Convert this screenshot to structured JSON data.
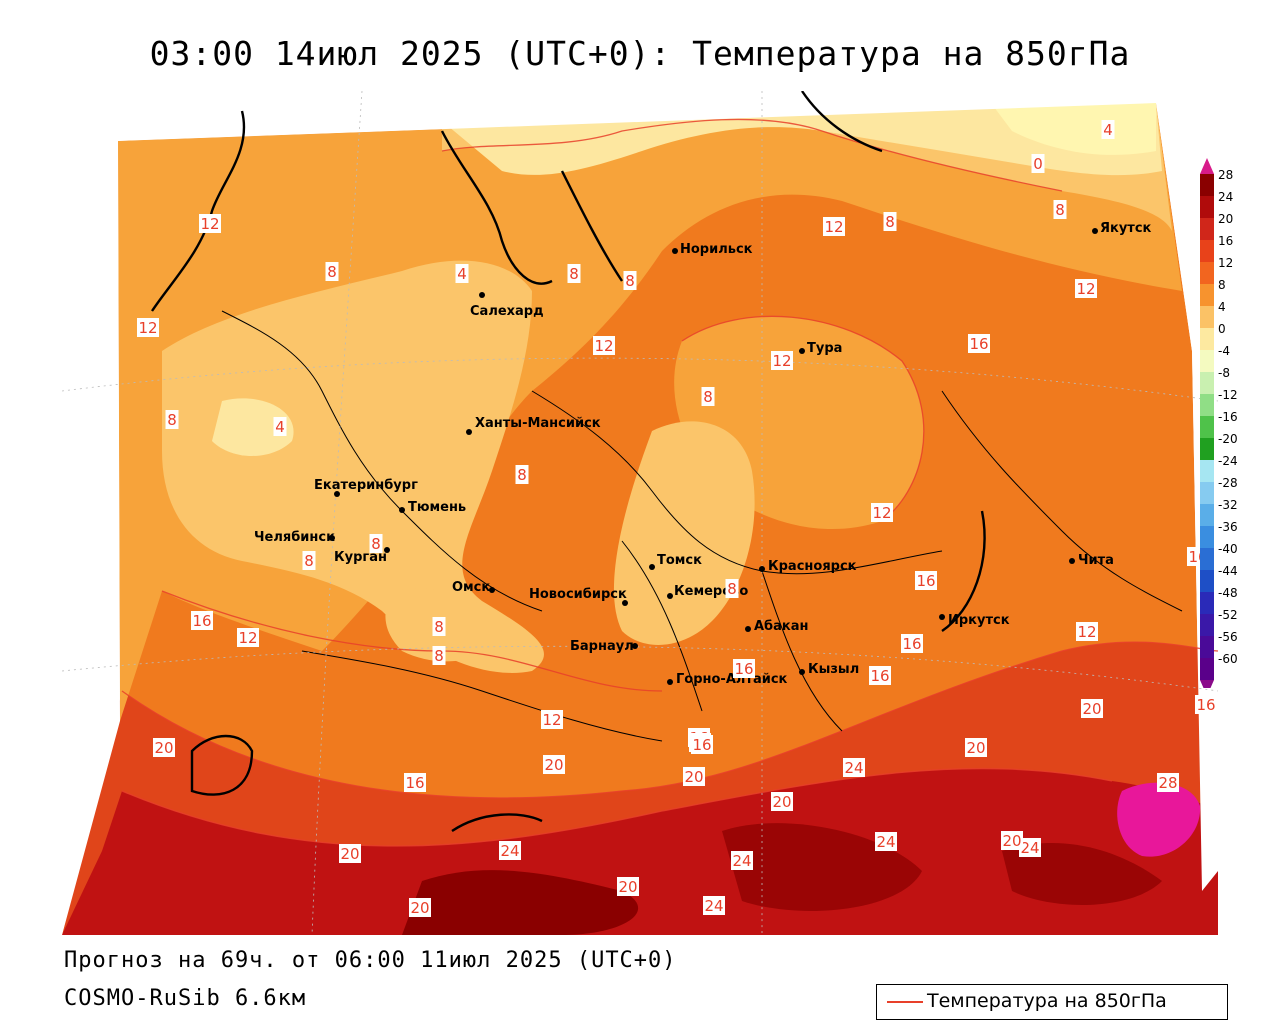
{
  "title": "03:00 14июл 2025 (UTC+0): Температура на 850гПа",
  "forecast_line": "Прогноз на 69ч. от 06:00 11июл 2025 (UTC+0)",
  "model_line": "COSMO-RuSib 6.6км",
  "legend_label": "Температура на 850гПа",
  "colors": {
    "c0": "#fff6b0",
    "c4": "#fde7a0",
    "c8": "#fbc56a",
    "c12": "#f7a33a",
    "c16": "#f07a1e",
    "c20": "#e0451a",
    "c24": "#c01212",
    "c28": "#8a0000",
    "hot": "#e8179a"
  },
  "colorbar": {
    "labels": [
      "28",
      "24",
      "20",
      "16",
      "12",
      "8",
      "4",
      "0",
      "-4",
      "-8",
      "-12",
      "-16",
      "-20",
      "-24",
      "-28",
      "-32",
      "-36",
      "-40",
      "-44",
      "-48",
      "-52",
      "-56",
      "-60"
    ],
    "colors": [
      "#8a0000",
      "#b00b0b",
      "#d0261a",
      "#e8421a",
      "#f2651f",
      "#f7932e",
      "#fbc266",
      "#fde9a0",
      "#f4fac0",
      "#c9f0b0",
      "#90de86",
      "#4fc24a",
      "#20a020",
      "#a6e6f2",
      "#86cbf0",
      "#5aaee8",
      "#3a8ee0",
      "#2a6ed4",
      "#1e4fc6",
      "#2a2ab8",
      "#3a18a8",
      "#4a0a98",
      "#5a008a"
    ]
  },
  "cities": [
    {
      "name": "Норильск"
    },
    {
      "name": "Якутск"
    },
    {
      "name": "Салехард"
    },
    {
      "name": "Тура"
    },
    {
      "name": "Ханты-Мансийск"
    },
    {
      "name": "Екатеринбург"
    },
    {
      "name": "Тюмень"
    },
    {
      "name": "Челябинск"
    },
    {
      "name": "Курган"
    },
    {
      "name": "Омск"
    },
    {
      "name": "Новосибирск"
    },
    {
      "name": "Томск"
    },
    {
      "name": "Кемерово"
    },
    {
      "name": "Красноярск"
    },
    {
      "name": "Абакан"
    },
    {
      "name": "Барнаул"
    },
    {
      "name": "Горно-Алтайск"
    },
    {
      "name": "Кызыл"
    },
    {
      "name": "Иркутск"
    },
    {
      "name": "Чита"
    }
  ],
  "contour_labels": [
    "12",
    "8",
    "4",
    "0",
    "4",
    "8",
    "12",
    "12",
    "8",
    "12",
    "12",
    "16",
    "12",
    "16",
    "12",
    "16",
    "16",
    "12",
    "8",
    "8",
    "8",
    "4",
    "8",
    "8",
    "8",
    "8",
    "8",
    "8",
    "16",
    "16",
    "16",
    "16",
    "16",
    "16",
    "20",
    "20",
    "20",
    "20",
    "20",
    "20",
    "20",
    "24",
    "24",
    "24",
    "24",
    "24",
    "24",
    "20",
    "20",
    "20",
    "28",
    "16",
    "12",
    "12",
    "16",
    "8"
  ]
}
